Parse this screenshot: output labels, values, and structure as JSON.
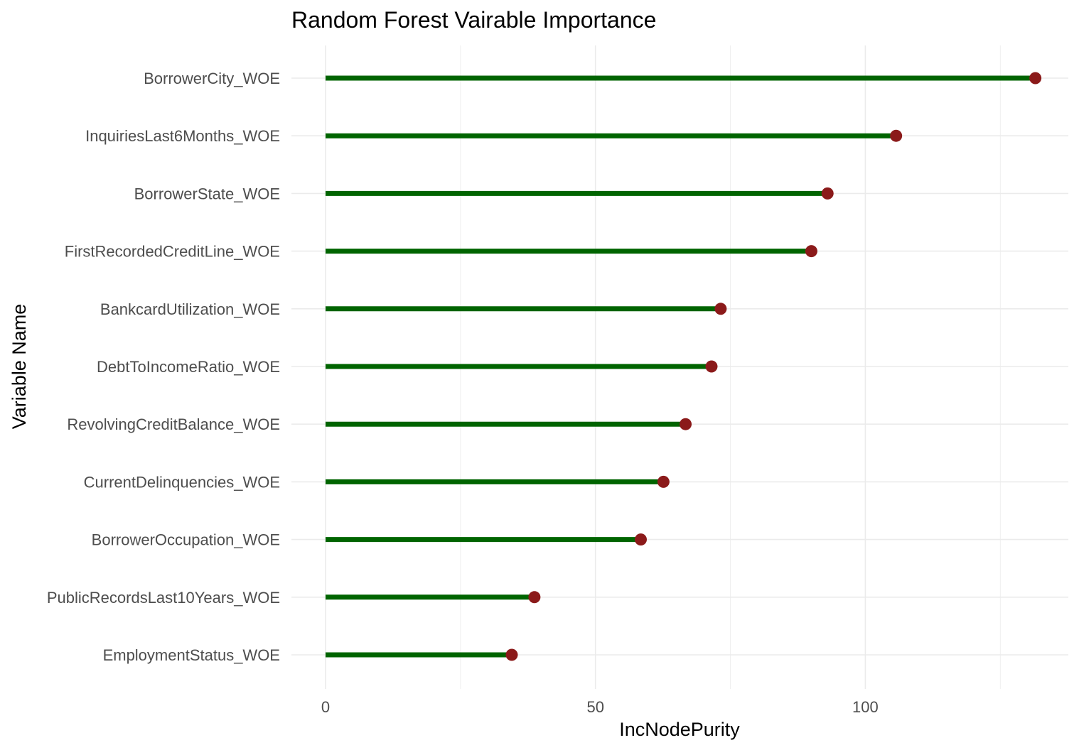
{
  "chart_data": {
    "type": "lollipop",
    "title": "Random Forest Vairable Importance",
    "xlabel": "IncNodePurity",
    "ylabel": "Variable Name",
    "xlim": [
      -13,
      138
    ],
    "x_ticks": [
      0,
      50,
      100
    ],
    "grid": true,
    "legend": "none",
    "colors": {
      "stem": "#006400",
      "point": "#8b1a1a",
      "grid": "#ebebeb"
    },
    "categories": [
      "BorrowerCity_WOE",
      "InquiriesLast6Months_WOE",
      "BorrowerState_WOE",
      "FirstRecordedCreditLine_WOE",
      "BankcardUtilization_WOE",
      "DebtToIncomeRatio_WOE",
      "RevolvingCreditBalance_WOE",
      "CurrentDelinquencies_WOE",
      "BorrowerOccupation_WOE",
      "PublicRecordsLast10Years_WOE",
      "EmploymentStatus_WOE"
    ],
    "values": [
      131.5,
      105.7,
      93.0,
      90.0,
      73.2,
      71.5,
      66.7,
      62.6,
      58.4,
      38.7,
      34.5
    ]
  }
}
